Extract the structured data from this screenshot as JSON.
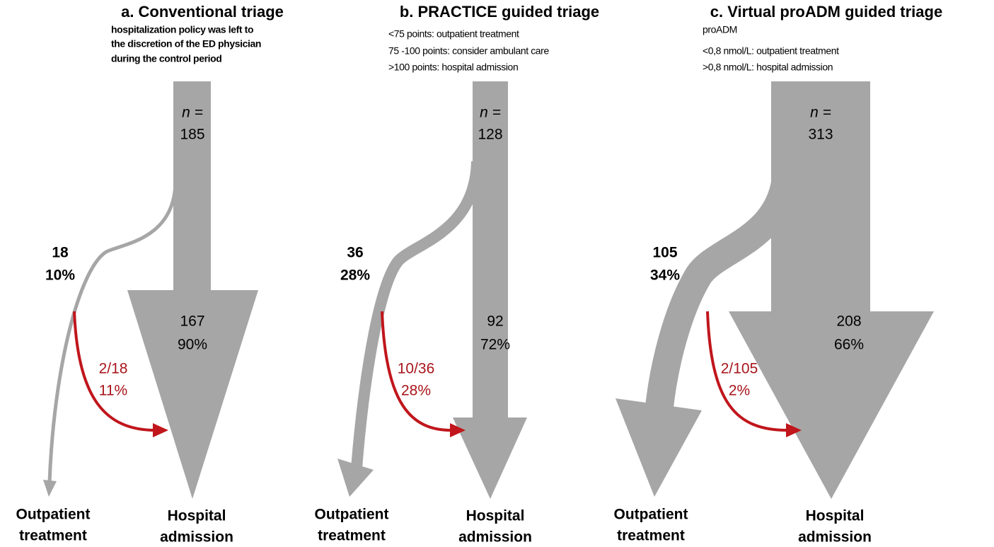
{
  "panels": [
    {
      "title": "a. Conventional triage",
      "description": [
        "hospitalization policy was left to",
        "the discretion of the ED physician",
        "during the control period"
      ],
      "n_label": "n =",
      "n_value": "185",
      "outpatient_count": "18",
      "outpatient_percent": "10%",
      "admission_count": "167",
      "admission_percent": "90%",
      "readmission_ratio": "2/18",
      "readmission_percent": "11%",
      "outpatient_label": [
        "Outpatient",
        "treatment"
      ],
      "admission_label": [
        "Hospital",
        "admission"
      ]
    },
    {
      "title": "b. PRACTICE guided triage",
      "description": [
        "<75 points: outpatient treatment",
        "75 -100 points: consider ambulant care",
        ">100 points: hospital admission"
      ],
      "n_label": "n =",
      "n_value": "128",
      "outpatient_count": "36",
      "outpatient_percent": "28%",
      "admission_count": "92",
      "admission_percent": "72%",
      "readmission_ratio": "10/36",
      "readmission_percent": "28%",
      "outpatient_label": [
        "Outpatient",
        "treatment"
      ],
      "admission_label": [
        "Hospital",
        "admission"
      ]
    },
    {
      "title": "c. Virtual proADM guided triage",
      "description": [
        "proADM",
        "<0,8 nmol/L: outpatient treatment",
        ">0,8 nmol/L: hospital admission"
      ],
      "n_label": "n =",
      "n_value": "313",
      "outpatient_count": "105",
      "outpatient_percent": "34%",
      "admission_count": "208",
      "admission_percent": "66%",
      "readmission_ratio": "2/105",
      "readmission_percent": "2%",
      "outpatient_label": [
        "Outpatient",
        "treatment"
      ],
      "admission_label": [
        "Hospital",
        "admission"
      ]
    }
  ]
}
